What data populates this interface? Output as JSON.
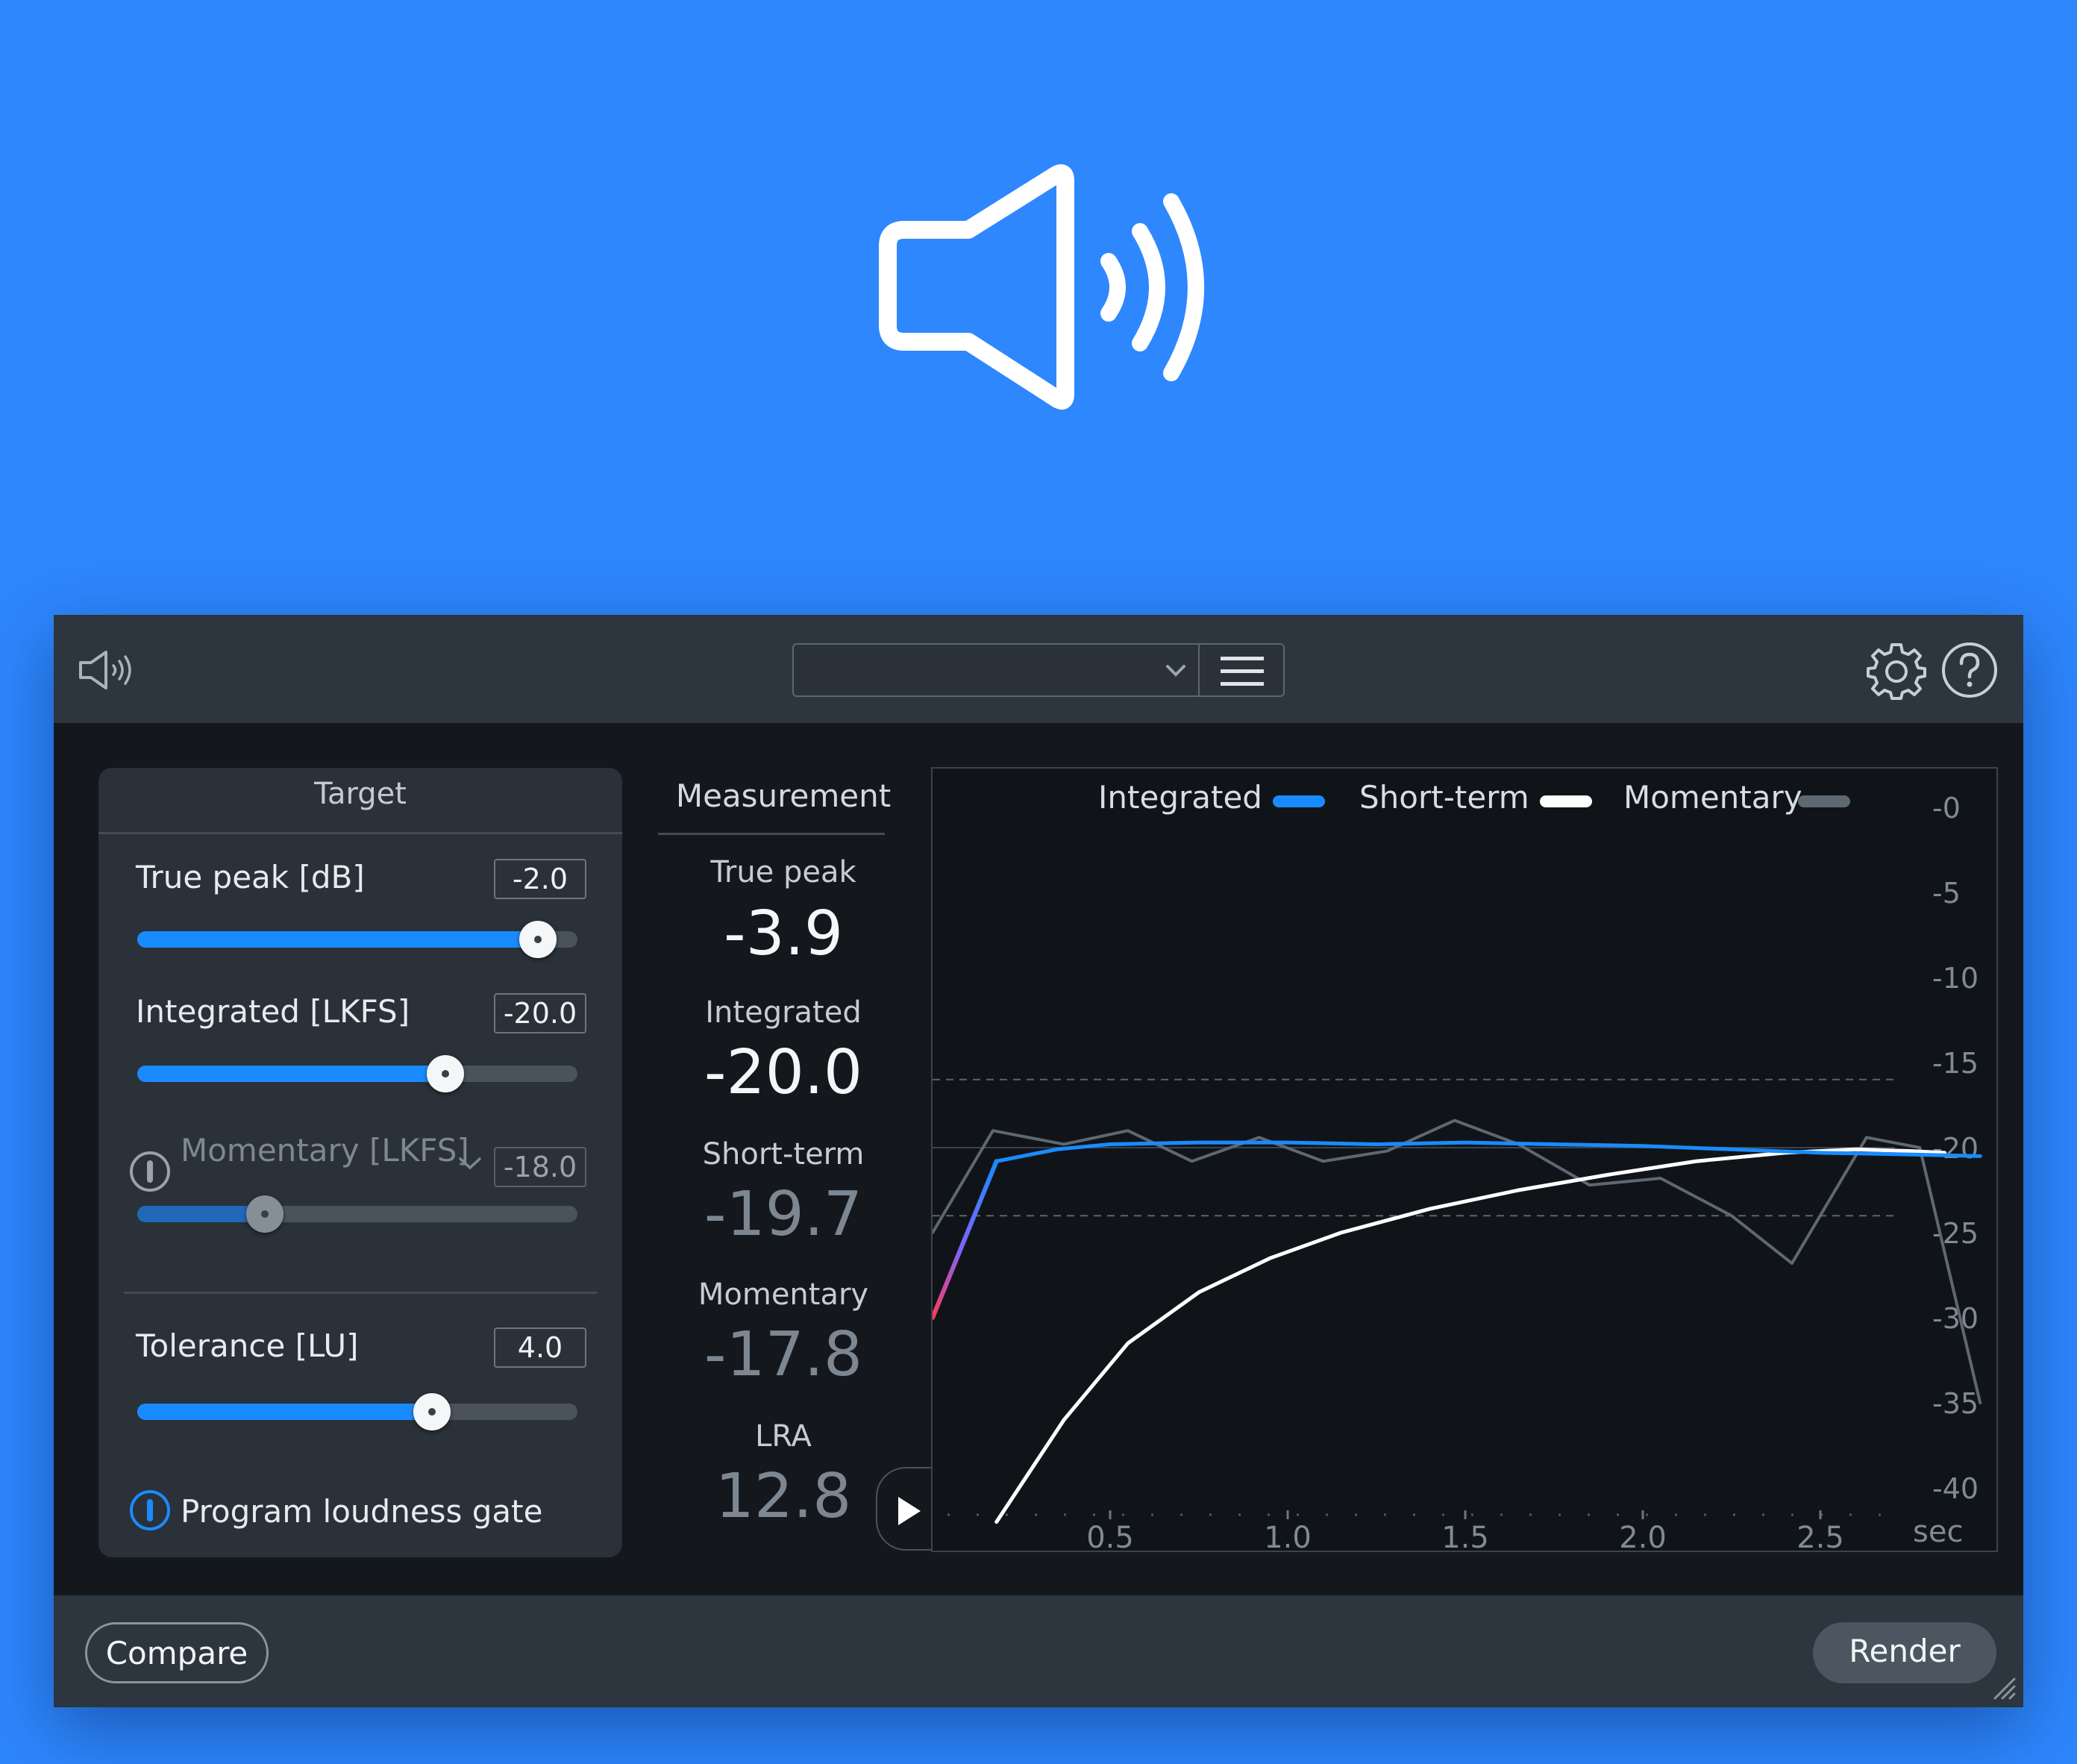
{
  "hero": {
    "icon": "speaker-volume-icon"
  },
  "header": {
    "app_icon": "speaker-volume-icon",
    "preset_value": "",
    "menu_icon": "hamburger-icon",
    "settings_icon": "gear-icon",
    "help_icon": "question-circle-icon"
  },
  "target": {
    "title": "Target",
    "true_peak": {
      "label": "True peak [dB]",
      "value": "-2.0",
      "level": 0.91
    },
    "integrated": {
      "label": "Integrated [LKFS]",
      "value": "-20.0",
      "level": 0.7
    },
    "momentary": {
      "label": "Momentary [LKFS]",
      "value": "-18.0",
      "level": 0.29,
      "enabled": false
    },
    "tolerance": {
      "label": "Tolerance [LU]",
      "value": "4.0",
      "level": 0.67
    },
    "gate_label": "Program loudness gate"
  },
  "measurement": {
    "title": "Measurement",
    "items": [
      {
        "label": "True peak",
        "value": "-3.9"
      },
      {
        "label": "Integrated",
        "value": "-20.0"
      },
      {
        "label": "Short-term",
        "value": "-19.7"
      },
      {
        "label": "Momentary",
        "value": "-17.8"
      },
      {
        "label": "LRA",
        "value": "12.8"
      }
    ]
  },
  "chart_data": {
    "type": "line",
    "legend": [
      "Integrated",
      "Short-term",
      "Momentary"
    ],
    "legend_position": "top",
    "xlabel": "sec",
    "x_ticks": [
      "0.5",
      "1.0",
      "1.5",
      "2.0",
      "2.5"
    ],
    "y_ticks": [
      "-0",
      "-5",
      "-10",
      "-15",
      "-20",
      "-25",
      "-30",
      "-35",
      "-40"
    ],
    "xlim": [
      0,
      3.0
    ],
    "ylim": [
      -40,
      0
    ],
    "tolerance_band": [
      -16,
      -24
    ],
    "colors": {
      "Integrated": "#1a8bff",
      "Short-term": "#ffffff",
      "Momentary": "#5e6870"
    },
    "series": [
      {
        "name": "Integrated",
        "x": [
          0.0,
          0.18,
          0.35,
          0.5,
          0.75,
          1.0,
          1.25,
          1.5,
          1.75,
          2.0,
          2.25,
          2.5,
          2.75,
          2.95
        ],
        "values": [
          -30.0,
          -20.8,
          -20.1,
          -19.8,
          -19.7,
          -19.7,
          -19.8,
          -19.7,
          -19.8,
          -19.9,
          -20.1,
          -20.3,
          -20.4,
          -20.5
        ]
      },
      {
        "name": "Short-term",
        "x": [
          0.18,
          0.37,
          0.55,
          0.75,
          0.95,
          1.15,
          1.4,
          1.65,
          1.9,
          2.15,
          2.4,
          2.6,
          2.75,
          2.85
        ],
        "values": [
          -42.0,
          -36.0,
          -31.5,
          -28.5,
          -26.5,
          -25.0,
          -23.6,
          -22.5,
          -21.6,
          -20.8,
          -20.3,
          -20.1,
          -20.2,
          -20.3
        ]
      },
      {
        "name": "Momentary",
        "x": [
          0.0,
          0.17,
          0.37,
          0.55,
          0.73,
          0.92,
          1.1,
          1.28,
          1.47,
          1.65,
          1.85,
          2.05,
          2.25,
          2.42,
          2.63,
          2.78,
          2.95
        ],
        "values": [
          -25.0,
          -19.0,
          -19.8,
          -19.0,
          -20.8,
          -19.4,
          -20.8,
          -20.2,
          -18.4,
          -19.8,
          -22.2,
          -21.8,
          -24.0,
          -26.8,
          -19.4,
          -20.0,
          -35.0
        ]
      }
    ]
  },
  "footer": {
    "compare_label": "Compare",
    "render_label": "Render"
  }
}
